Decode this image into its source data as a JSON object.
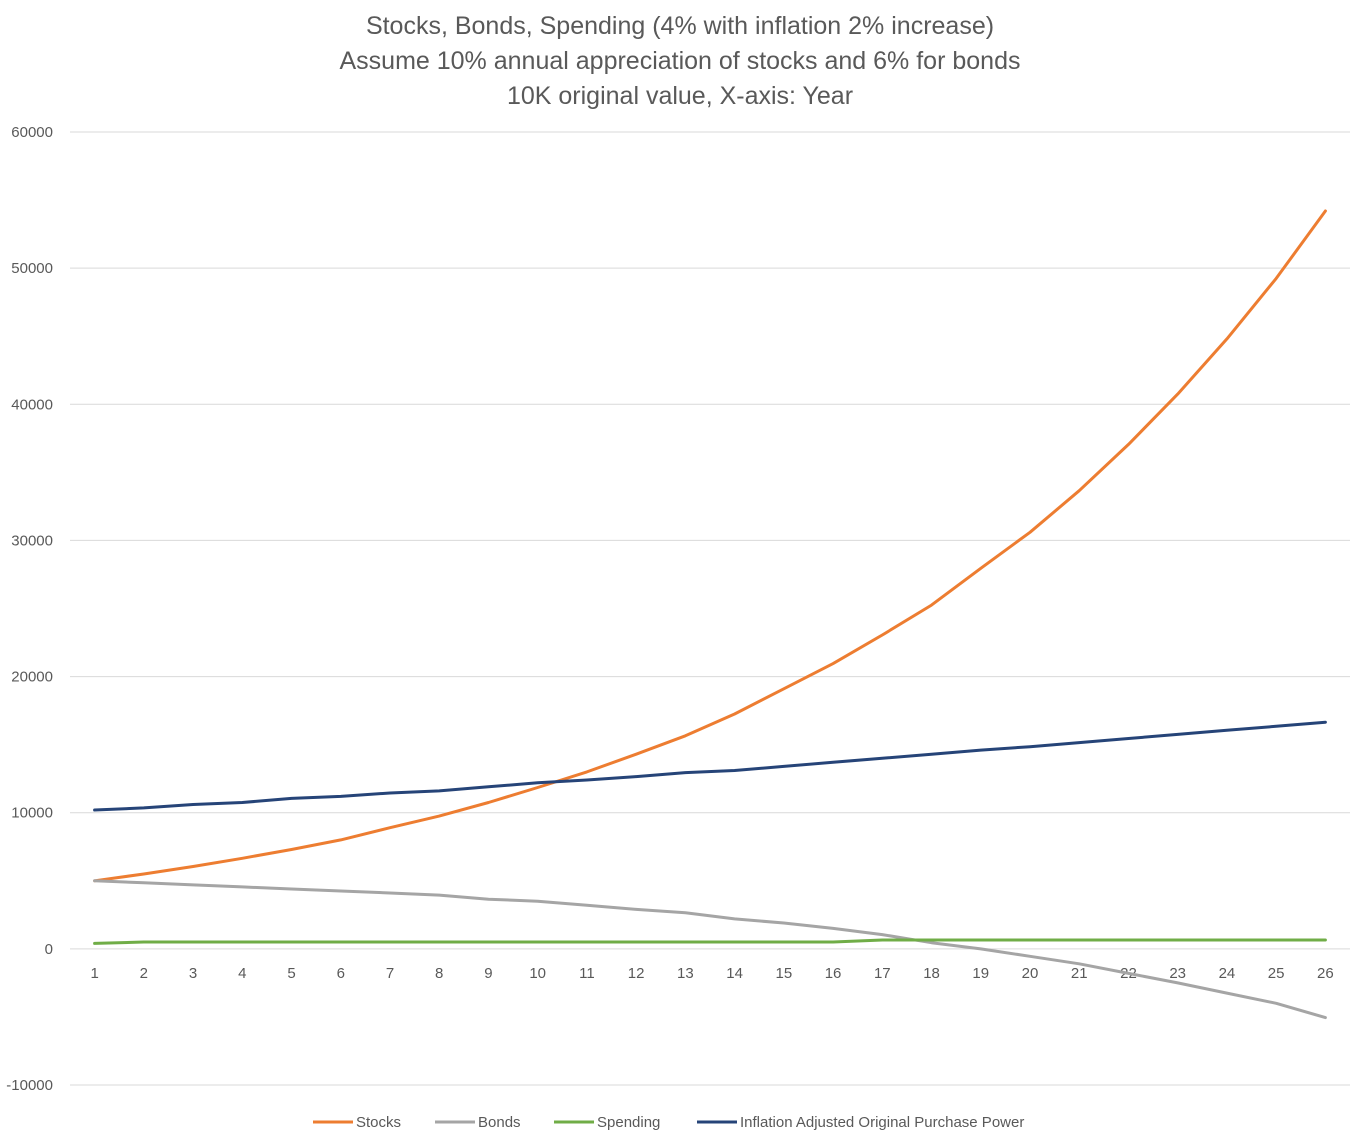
{
  "chart_data": {
    "type": "line",
    "title": [
      "Stocks, Bonds, Spending (4% with inflation 2% increase)",
      "Assume 10% annual appreciation of stocks and 6% for bonds",
      "10K original value, X-axis: Year"
    ],
    "xlabel": "",
    "ylabel": "",
    "categories": [
      "1",
      "2",
      "3",
      "4",
      "5",
      "6",
      "7",
      "8",
      "9",
      "10",
      "11",
      "12",
      "13",
      "14",
      "15",
      "16",
      "17",
      "18",
      "19",
      "20",
      "21",
      "22",
      "23",
      "24",
      "25",
      "26"
    ],
    "ylim": [
      -10000,
      60000
    ],
    "yticks": [
      -10000,
      0,
      10000,
      20000,
      30000,
      40000,
      50000,
      60000
    ],
    "ytick_labels": [
      "-10000",
      "0",
      "10000",
      "20000",
      "30000",
      "40000",
      "50000",
      "60000"
    ],
    "grid": true,
    "legend_position": "bottom",
    "series": [
      {
        "name": "Stocks",
        "color": "#ED7D31",
        "values": [
          5000,
          5500,
          6050,
          6650,
          7300,
          8000,
          8900,
          9750,
          10750,
          11850,
          13000,
          14300,
          15650,
          17250,
          19100,
          20950,
          23050,
          25250,
          27950,
          30600,
          33650,
          37050,
          40750,
          44800,
          49250,
          54200
        ]
      },
      {
        "name": "Bonds",
        "color": "#A5A5A5",
        "values": [
          5000,
          4850,
          4700,
          4550,
          4400,
          4250,
          4100,
          3950,
          3650,
          3500,
          3200,
          2900,
          2650,
          2200,
          1900,
          1500,
          1050,
          450,
          0,
          -550,
          -1100,
          -1800,
          -2500,
          -3250,
          -4000,
          -5050
        ]
      },
      {
        "name": "Spending",
        "color": "#70AD47",
        "values": [
          400,
          500,
          500,
          500,
          500,
          500,
          500,
          500,
          500,
          500,
          500,
          500,
          500,
          500,
          500,
          500,
          650,
          650,
          650,
          650,
          650,
          650,
          650,
          650,
          650,
          650
        ]
      },
      {
        "name": "Inflation Adjusted Original Purchase Power",
        "color": "#264478",
        "values": [
          10200,
          10350,
          10600,
          10750,
          11050,
          11200,
          11450,
          11600,
          11900,
          12200,
          12400,
          12650,
          12950,
          13100,
          13400,
          13700,
          14000,
          14300,
          14600,
          14850,
          15150,
          15450,
          15750,
          16050,
          16350,
          16650
        ]
      }
    ]
  }
}
